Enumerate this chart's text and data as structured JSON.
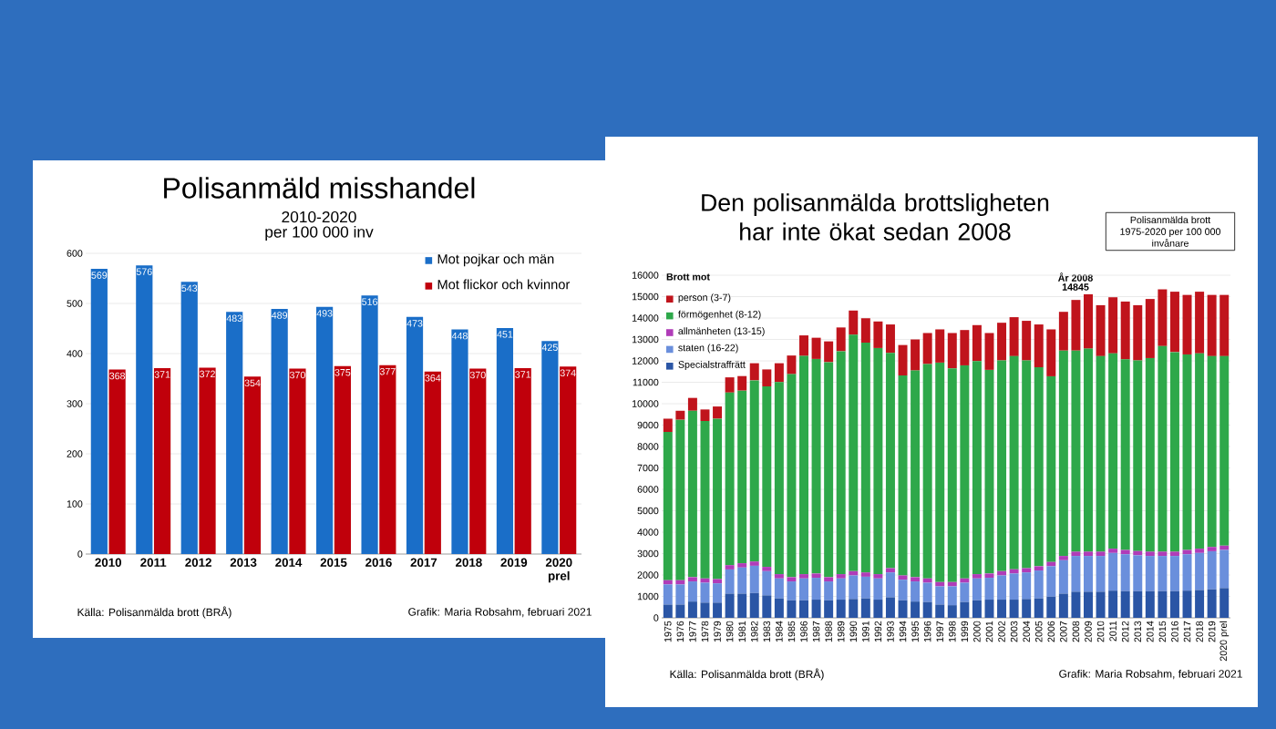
{
  "chart_data": [
    {
      "type": "bar",
      "title": "Polisanmäld misshandel",
      "subtitle": "2010-2020",
      "categories": [
        "2010",
        "2011",
        "2012",
        "2013",
        "2014",
        "2015",
        "2016",
        "2017",
        "2018",
        "2019",
        "2020 prel"
      ],
      "series": [
        {
          "name": "Mot pojkar och män",
          "color": "#1a6ec8",
          "values": [
            569,
            576,
            543,
            483,
            489,
            493,
            516,
            473,
            448,
            451,
            425
          ]
        },
        {
          "name": "Mot flickor och kvinnor",
          "color": "#c0000b",
          "values": [
            368,
            371,
            372,
            354,
            370,
            375,
            377,
            364,
            370,
            371,
            374
          ]
        }
      ],
      "ylim": [
        0,
        600
      ],
      "yticks": [
        0,
        100,
        200,
        300,
        400,
        500,
        600
      ],
      "grid": "y",
      "legend": "top right",
      "data_labels": true,
      "annotations": [
        "per 100 000 inv",
        "Källa: Polisanmälda brott (BRÅ)",
        "Grafik: Maria Robsahm, februari 2021"
      ]
    },
    {
      "type": "bar",
      "stacked": true,
      "title": "Den polisanmälda brottsligheten har inte ökat sedan 2008",
      "legend_title": "Brott mot",
      "categories": [
        "1975",
        "1976",
        "1977",
        "1978",
        "1979",
        "1980",
        "1981",
        "1982",
        "1983",
        "1984",
        "1985",
        "1986",
        "1987",
        "1988",
        "1989",
        "1990",
        "1991",
        "1992",
        "1993",
        "1994",
        "1995",
        "1996",
        "1997",
        "1998",
        "1999",
        "2000",
        "2001",
        "2002",
        "2003",
        "2004",
        "2005",
        "2006",
        "2007",
        "2008",
        "2009",
        "2010",
        "2011",
        "2012",
        "2013",
        "2014",
        "2015",
        "2016",
        "2017",
        "2018",
        "2019",
        "2020 prel"
      ],
      "series": [
        {
          "name": "Specialstraffrätt",
          "color": "#2a55a5",
          "values": [
            620,
            620,
            760,
            710,
            710,
            1130,
            1130,
            1160,
            1050,
            910,
            820,
            820,
            850,
            820,
            850,
            880,
            910,
            850,
            960,
            820,
            760,
            740,
            620,
            590,
            740,
            820,
            850,
            850,
            850,
            880,
            910,
            990,
            1130,
            1220,
            1220,
            1220,
            1270,
            1250,
            1250,
            1250,
            1250,
            1250,
            1270,
            1300,
            1330,
            1390
          ]
        },
        {
          "name": "staten (16-22)",
          "color": "#6a8fdc",
          "values": [
            940,
            940,
            940,
            930,
            900,
            1130,
            1220,
            1270,
            1130,
            930,
            880,
            1020,
            1020,
            880,
            990,
            1100,
            1010,
            990,
            1160,
            960,
            940,
            900,
            850,
            880,
            900,
            1020,
            1020,
            1130,
            1220,
            1240,
            1300,
            1420,
            1560,
            1670,
            1670,
            1670,
            1760,
            1720,
            1670,
            1640,
            1640,
            1640,
            1700,
            1730,
            1780,
            1780
          ]
        },
        {
          "name": "allmänheten (13-15)",
          "color": "#b03cb8",
          "values": [
            200,
            200,
            200,
            200,
            200,
            200,
            200,
            200,
            200,
            200,
            200,
            200,
            200,
            200,
            200,
            200,
            200,
            200,
            200,
            200,
            200,
            200,
            200,
            200,
            200,
            200,
            200,
            200,
            200,
            200,
            200,
            200,
            200,
            200,
            200,
            200,
            200,
            200,
            200,
            200,
            200,
            200,
            200,
            200,
            200,
            200
          ]
        },
        {
          "name": "förmögenhet (8-12)",
          "color": "#2ea84a",
          "values": [
            6920,
            7490,
            7770,
            7350,
            7490,
            8060,
            8060,
            8460,
            8430,
            8970,
            9480,
            10190,
            10020,
            10040,
            10410,
            11040,
            10730,
            10560,
            10050,
            9340,
            9650,
            10010,
            10250,
            9980,
            9950,
            9950,
            9510,
            9840,
            9950,
            9700,
            9290,
            8670,
            9590,
            9390,
            9480,
            9130,
            9120,
            8900,
            8900,
            9040,
            9600,
            9320,
            9130,
            9120,
            8910,
            8850
          ]
        },
        {
          "name": "person (3-7)",
          "color": "#c0141c",
          "values": [
            620,
            420,
            600,
            540,
            570,
            710,
            680,
            800,
            790,
            880,
            870,
            960,
            990,
            970,
            1110,
            1130,
            1140,
            1240,
            1330,
            1420,
            1450,
            1450,
            1550,
            1650,
            1650,
            1680,
            1720,
            1760,
            1820,
            1850,
            2000,
            2190,
            1810,
            2365,
            2540,
            2380,
            2620,
            2700,
            2580,
            2760,
            2650,
            2820,
            2780,
            2880,
            2860,
            2860
          ]
        }
      ],
      "ylim": [
        0,
        16000
      ],
      "yticks": [
        0,
        1000,
        2000,
        3000,
        4000,
        5000,
        6000,
        7000,
        8000,
        9000,
        10000,
        11000,
        12000,
        13000,
        14000,
        15000,
        16000
      ],
      "grid": "y",
      "legend": "top left",
      "annotations": [
        "Källa: Polisanmälda brott (BRÅ)",
        "Grafik: Maria Robsahm, februari 2021",
        "Polisanmälda brott 1975-2020 per 100 000 invånare",
        "År 2008",
        "14845"
      ]
    }
  ]
}
